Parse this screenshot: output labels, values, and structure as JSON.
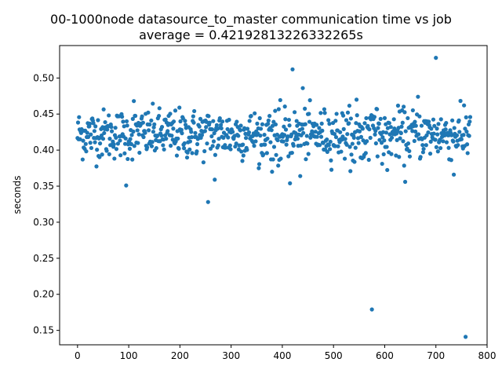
{
  "chart_data": {
    "type": "scatter",
    "title": "00-1000node datasource_to_master communication time vs job",
    "subtitle": "average = 0.42192813226332265s",
    "xlabel": "",
    "ylabel": "seconds",
    "xlim": [
      -35,
      800
    ],
    "ylim": [
      0.13,
      0.545
    ],
    "xticks": [
      0,
      100,
      200,
      300,
      400,
      500,
      600,
      700,
      800
    ],
    "yticks": [
      0.15,
      0.2,
      0.25,
      0.3,
      0.35,
      0.4,
      0.45,
      0.5
    ],
    "ytick_labels": [
      "0.15",
      "0.20",
      "0.25",
      "0.30",
      "0.35",
      "0.40",
      "0.45",
      "0.50"
    ],
    "grid": false,
    "marker_color": "#1f77b4",
    "n_points": 768,
    "typical_range": [
      0.37,
      0.47
    ],
    "outliers": [
      {
        "x": 95,
        "y": 0.351
      },
      {
        "x": 110,
        "y": 0.468
      },
      {
        "x": 255,
        "y": 0.328
      },
      {
        "x": 268,
        "y": 0.359
      },
      {
        "x": 380,
        "y": 0.37
      },
      {
        "x": 415,
        "y": 0.354
      },
      {
        "x": 420,
        "y": 0.512
      },
      {
        "x": 435,
        "y": 0.364
      },
      {
        "x": 440,
        "y": 0.486
      },
      {
        "x": 545,
        "y": 0.47
      },
      {
        "x": 575,
        "y": 0.179
      },
      {
        "x": 640,
        "y": 0.356
      },
      {
        "x": 665,
        "y": 0.474
      },
      {
        "x": 700,
        "y": 0.528
      },
      {
        "x": 735,
        "y": 0.366
      },
      {
        "x": 755,
        "y": 0.462
      },
      {
        "x": 758,
        "y": 0.141
      }
    ]
  }
}
